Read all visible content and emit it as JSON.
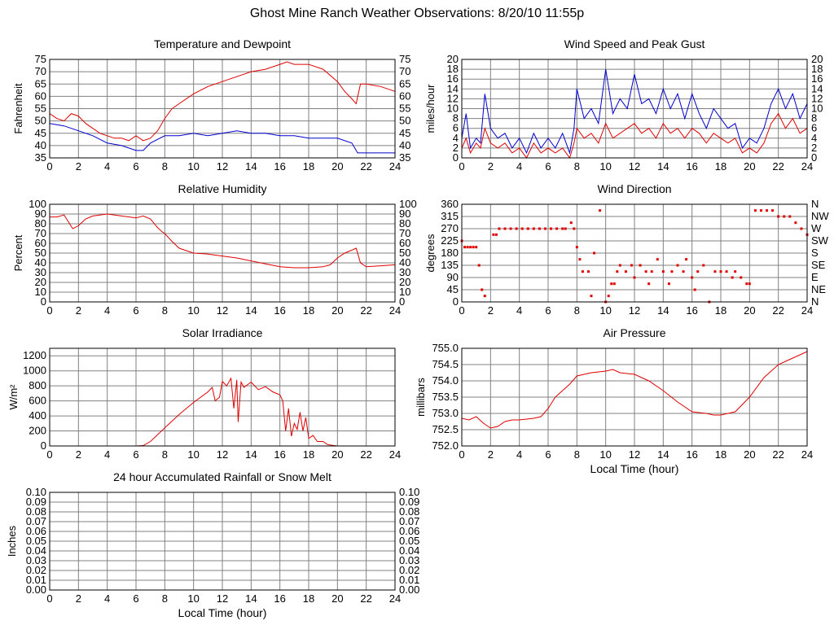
{
  "page": {
    "title": "Ghost Mine Ranch Weather Observations: 8/20/10 11:55p"
  },
  "colors": {
    "series_red": "#e00000",
    "series_blue": "#0000d0",
    "grid": "#808080",
    "frame": "#000000"
  },
  "chart_data": [
    {
      "id": "temp",
      "type": "line",
      "title": "Temperature and Dewpoint",
      "xlabel": "",
      "ylabel": "Fahrenheit",
      "xlim": [
        0,
        24
      ],
      "ylim": [
        35,
        75
      ],
      "xticks": [
        0,
        2,
        4,
        6,
        8,
        10,
        12,
        14,
        16,
        18,
        20,
        22,
        24
      ],
      "yticks": [
        35,
        40,
        45,
        50,
        55,
        60,
        65,
        70,
        75
      ],
      "ytick_labels": [
        "35",
        "40",
        "45",
        "50",
        "55",
        "60",
        "65",
        "70",
        "75"
      ],
      "ytick_labels_right": [
        "35",
        "40",
        "45",
        "50",
        "55",
        "60",
        "65",
        "70",
        "75"
      ],
      "grid": true,
      "series": [
        {
          "color": "#e00000",
          "style": "line",
          "x": [
            0,
            0.5,
            1,
            1.5,
            2,
            2.5,
            3,
            3.5,
            4,
            4.5,
            5,
            5.5,
            6,
            6.5,
            7,
            7.5,
            8,
            8.5,
            9,
            10,
            11,
            12,
            13,
            14,
            15,
            16,
            16.5,
            17,
            18,
            19,
            20,
            20.5,
            21,
            21.3,
            21.6,
            22,
            23,
            24
          ],
          "y": [
            53,
            51,
            50,
            53,
            52,
            49,
            47,
            45,
            44,
            43,
            43,
            42,
            44,
            42,
            43,
            46,
            51,
            55,
            57,
            61,
            64,
            66,
            68,
            70,
            71,
            73,
            74,
            73,
            73,
            71,
            66,
            62,
            59,
            57,
            65,
            65,
            64,
            62
          ]
        },
        {
          "color": "#0000d0",
          "style": "line",
          "x": [
            0,
            1,
            2,
            3,
            4,
            5,
            5.5,
            6,
            6.5,
            7,
            8,
            9,
            10,
            11,
            12,
            13,
            14,
            15,
            16,
            17,
            18,
            19,
            20,
            21,
            21.4,
            22,
            23,
            24
          ],
          "y": [
            49,
            48,
            46,
            44,
            41,
            40,
            39,
            38,
            38,
            41,
            44,
            44,
            45,
            44,
            45,
            46,
            45,
            45,
            44,
            44,
            43,
            43,
            43,
            41,
            37,
            37,
            37,
            37
          ]
        }
      ]
    },
    {
      "id": "wind",
      "type": "line",
      "title": "Wind Speed and Peak Gust",
      "xlabel": "",
      "ylabel": "miles/hour",
      "xlim": [
        0,
        24
      ],
      "ylim": [
        0,
        20
      ],
      "xticks": [
        0,
        2,
        4,
        6,
        8,
        10,
        12,
        14,
        16,
        18,
        20,
        22,
        24
      ],
      "yticks": [
        0,
        2,
        4,
        6,
        8,
        10,
        12,
        14,
        16,
        18,
        20
      ],
      "ytick_labels": [
        "0",
        "2",
        "4",
        "6",
        "8",
        "10",
        "12",
        "14",
        "16",
        "18",
        "20"
      ],
      "ytick_labels_right": [
        "0",
        "2",
        "4",
        "6",
        "8",
        "10",
        "12",
        "14",
        "16",
        "18",
        "20"
      ],
      "grid": true,
      "series": [
        {
          "color": "#e00000",
          "style": "line",
          "x": [
            0,
            0.3,
            0.6,
            1,
            1.3,
            1.6,
            2,
            2.5,
            3,
            3.5,
            4,
            4.5,
            5,
            5.5,
            6,
            6.5,
            7,
            7.5,
            7.8,
            8,
            8.5,
            9,
            9.5,
            10,
            10.5,
            11,
            11.5,
            12,
            12.5,
            13,
            13.5,
            14,
            14.5,
            15,
            15.5,
            16,
            16.5,
            17,
            17.5,
            18,
            18.5,
            19,
            19.5,
            20,
            20.5,
            21,
            21.5,
            22,
            22.5,
            23,
            23.5,
            24
          ],
          "y": [
            2,
            4,
            1,
            3,
            2,
            6,
            3,
            2,
            3,
            1,
            2,
            0,
            3,
            1,
            2,
            1,
            2,
            0,
            3,
            6,
            4,
            5,
            3,
            7,
            4,
            5,
            6,
            7,
            5,
            6,
            4,
            7,
            5,
            6,
            4,
            6,
            5,
            3,
            5,
            4,
            3,
            4,
            1,
            2,
            1,
            3,
            7,
            9,
            6,
            8,
            5,
            6
          ]
        },
        {
          "color": "#0000d0",
          "style": "line",
          "x": [
            0,
            0.3,
            0.6,
            1,
            1.3,
            1.6,
            2,
            2.5,
            3,
            3.5,
            4,
            4.5,
            5,
            5.5,
            6,
            6.5,
            7,
            7.5,
            7.8,
            8,
            8.5,
            9,
            9.5,
            10,
            10.5,
            11,
            11.5,
            12,
            12.5,
            13,
            13.5,
            14,
            14.5,
            15,
            15.5,
            16,
            16.5,
            17,
            17.5,
            18,
            18.5,
            19,
            19.5,
            20,
            20.5,
            21,
            21.5,
            22,
            22.5,
            23,
            23.5,
            24
          ],
          "y": [
            4,
            9,
            2,
            4,
            3,
            13,
            6,
            4,
            5,
            2,
            4,
            1,
            5,
            2,
            4,
            2,
            5,
            1,
            6,
            14,
            8,
            10,
            7,
            18,
            9,
            12,
            10,
            17,
            11,
            12,
            9,
            14,
            10,
            13,
            8,
            13,
            9,
            6,
            10,
            8,
            6,
            7,
            2,
            4,
            3,
            6,
            11,
            14,
            10,
            13,
            8,
            11
          ]
        }
      ]
    },
    {
      "id": "humidity",
      "type": "line",
      "title": "Relative Humidity",
      "xlabel": "",
      "ylabel": "Percent",
      "xlim": [
        0,
        24
      ],
      "ylim": [
        0,
        100
      ],
      "xticks": [
        0,
        2,
        4,
        6,
        8,
        10,
        12,
        14,
        16,
        18,
        20,
        22,
        24
      ],
      "yticks": [
        0,
        10,
        20,
        30,
        40,
        50,
        60,
        70,
        80,
        90,
        100
      ],
      "ytick_labels": [
        "0",
        "10",
        "20",
        "30",
        "40",
        "50",
        "60",
        "70",
        "80",
        "90",
        "100"
      ],
      "ytick_labels_right": [
        "0",
        "10",
        "20",
        "30",
        "40",
        "50",
        "60",
        "70",
        "80",
        "90",
        "100"
      ],
      "grid": true,
      "series": [
        {
          "color": "#e00000",
          "style": "line",
          "x": [
            0,
            0.5,
            1,
            1.3,
            1.6,
            2,
            2.5,
            3,
            4,
            5,
            6,
            6.5,
            7,
            7.5,
            7.8,
            8,
            8.5,
            9,
            10,
            11,
            12,
            13,
            14,
            15,
            16,
            17,
            18,
            19,
            19.5,
            20,
            20.5,
            21,
            21.3,
            21.6,
            22,
            23,
            24
          ],
          "y": [
            87,
            87,
            89,
            82,
            75,
            78,
            85,
            88,
            90,
            88,
            86,
            88,
            85,
            76,
            72,
            70,
            62,
            55,
            50,
            49,
            47,
            45,
            42,
            39,
            36,
            35,
            35,
            36,
            38,
            45,
            50,
            53,
            55,
            40,
            36,
            37,
            38
          ]
        }
      ]
    },
    {
      "id": "direction",
      "type": "scatter",
      "title": "Wind Direction",
      "xlabel": "",
      "ylabel": "degrees",
      "xlim": [
        0,
        24
      ],
      "ylim": [
        0,
        360
      ],
      "xticks": [
        0,
        2,
        4,
        6,
        8,
        10,
        12,
        14,
        16,
        18,
        20,
        22,
        24
      ],
      "yticks": [
        0,
        45,
        90,
        135,
        180,
        225,
        270,
        315,
        360
      ],
      "ytick_labels": [
        "0",
        "45",
        "90",
        "135",
        "180",
        "225",
        "270",
        "315",
        "360"
      ],
      "ytick_labels_right": [
        "N",
        "NE",
        "E",
        "SE",
        "S",
        "SW",
        "W",
        "NW",
        "N"
      ],
      "grid": true,
      "series": [
        {
          "color": "#e00000",
          "style": "dots",
          "x": [
            0,
            0.2,
            0.4,
            0.6,
            0.8,
            1,
            1.2,
            1.4,
            1.6,
            2.2,
            2.4,
            2.6,
            3,
            3.4,
            3.8,
            4.2,
            4.6,
            5,
            5.4,
            5.8,
            6.2,
            6.6,
            7,
            7.2,
            7.6,
            7.8,
            8,
            8.2,
            8.4,
            8.8,
            9,
            9.2,
            9.6,
            10,
            10.2,
            10.4,
            10.6,
            10.8,
            11,
            11.4,
            11.8,
            12,
            12.4,
            12.8,
            13,
            13.2,
            13.6,
            14,
            14.4,
            14.6,
            15,
            15.4,
            15.6,
            16,
            16.2,
            16.4,
            16.8,
            17.2,
            17.6,
            18,
            18.4,
            18.8,
            19,
            19.4,
            19.8,
            20,
            20.4,
            20.8,
            21.2,
            21.6,
            22,
            22.4,
            22.8,
            23.2,
            23.6,
            24
          ],
          "y": [
            225,
            202,
            202,
            202,
            202,
            202,
            135,
            45,
            22,
            248,
            248,
            270,
            270,
            270,
            270,
            270,
            270,
            270,
            270,
            270,
            270,
            270,
            270,
            270,
            292,
            270,
            202,
            157,
            112,
            112,
            22,
            180,
            337,
            0,
            22,
            67,
            67,
            112,
            135,
            112,
            135,
            90,
            135,
            112,
            67,
            112,
            157,
            112,
            67,
            112,
            135,
            112,
            157,
            90,
            45,
            112,
            135,
            0,
            112,
            112,
            112,
            90,
            112,
            90,
            67,
            67,
            337,
            337,
            337,
            337,
            315,
            315,
            315,
            292,
            270,
            248
          ]
        }
      ]
    },
    {
      "id": "solar",
      "type": "line",
      "title": "Solar Irradiance",
      "xlabel": "",
      "ylabel": "W/m²",
      "xlim": [
        0,
        24
      ],
      "ylim": [
        0,
        1300
      ],
      "xticks": [
        0,
        2,
        4,
        6,
        8,
        10,
        12,
        14,
        16,
        18,
        20,
        22,
        24
      ],
      "yticks": [
        0,
        200,
        400,
        600,
        800,
        1000,
        1200
      ],
      "ytick_labels": [
        "0",
        "200",
        "400",
        "600",
        "800",
        "1000",
        "1200"
      ],
      "ytick_labels_right": [],
      "grid": true,
      "series": [
        {
          "color": "#e00000",
          "style": "line",
          "x": [
            0,
            6,
            6.5,
            7,
            8,
            9,
            10,
            11,
            11.3,
            11.5,
            11.8,
            12,
            12.3,
            12.6,
            12.8,
            13,
            13.1,
            13.3,
            13.5,
            14,
            14.5,
            15,
            15.5,
            16,
            16.2,
            16.4,
            16.6,
            16.8,
            17,
            17.2,
            17.4,
            17.6,
            17.8,
            18,
            18.3,
            18.6,
            19,
            19.3,
            19.6,
            20,
            24
          ],
          "y": [
            0,
            0,
            5,
            60,
            240,
            420,
            580,
            720,
            780,
            600,
            650,
            860,
            800,
            900,
            500,
            880,
            320,
            850,
            780,
            850,
            750,
            790,
            720,
            680,
            600,
            200,
            500,
            130,
            300,
            220,
            450,
            200,
            380,
            100,
            140,
            60,
            60,
            20,
            10,
            0,
            0
          ]
        }
      ]
    },
    {
      "id": "pressure",
      "type": "line",
      "title": "Air Pressure",
      "xlabel": "Local Time (hour)",
      "ylabel": "millibars",
      "xlim": [
        0,
        24
      ],
      "ylim": [
        752.0,
        755.0
      ],
      "xticks": [
        0,
        2,
        4,
        6,
        8,
        10,
        12,
        14,
        16,
        18,
        20,
        22,
        24
      ],
      "yticks": [
        752.0,
        752.5,
        753.0,
        753.5,
        754.0,
        754.5,
        755.0
      ],
      "ytick_labels": [
        "752.0",
        "752.5",
        "753.0",
        "753.5",
        "754.0",
        "754.5",
        "755.0"
      ],
      "ytick_labels_right": [],
      "grid": true,
      "series": [
        {
          "color": "#e00000",
          "style": "line",
          "x": [
            0,
            0.5,
            1,
            1.5,
            2,
            2.5,
            3,
            3.5,
            4,
            5,
            5.5,
            6,
            6.5,
            7,
            7.5,
            8,
            9,
            10,
            10.5,
            11,
            12,
            13,
            14,
            15,
            16,
            17,
            17.5,
            18,
            19,
            20,
            21,
            22,
            22.5,
            23,
            23.5,
            24
          ],
          "y": [
            752.85,
            752.8,
            752.9,
            752.7,
            752.55,
            752.6,
            752.75,
            752.8,
            752.8,
            752.85,
            752.9,
            753.15,
            753.5,
            753.7,
            753.9,
            754.15,
            754.25,
            754.3,
            754.35,
            754.25,
            754.2,
            754.0,
            753.7,
            753.35,
            753.05,
            753.0,
            752.95,
            752.95,
            753.05,
            753.5,
            754.1,
            754.5,
            754.6,
            754.7,
            754.8,
            754.9
          ]
        }
      ]
    },
    {
      "id": "rain",
      "type": "line",
      "title": "24 hour Accumulated Rainfall or Snow Melt",
      "xlabel": "Local Time (hour)",
      "ylabel": "Inches",
      "xlim": [
        0,
        24
      ],
      "ylim": [
        0,
        0.1
      ],
      "xticks": [
        0,
        2,
        4,
        6,
        8,
        10,
        12,
        14,
        16,
        18,
        20,
        22,
        24
      ],
      "yticks": [
        0,
        0.01,
        0.02,
        0.03,
        0.04,
        0.05,
        0.06,
        0.07,
        0.08,
        0.09,
        0.1
      ],
      "ytick_labels": [
        "0.00",
        "0.01",
        "0.02",
        "0.03",
        "0.04",
        "0.05",
        "0.06",
        "0.07",
        "0.08",
        "0.09",
        "0.10"
      ],
      "ytick_labels_right": [
        "0.00",
        "0.01",
        "0.02",
        "0.03",
        "0.04",
        "0.05",
        "0.06",
        "0.07",
        "0.08",
        "0.09",
        "0.10"
      ],
      "grid": true,
      "series": [
        {
          "color": "#e00000",
          "style": "line",
          "x": [
            0,
            24
          ],
          "y": [
            0,
            0
          ]
        }
      ]
    }
  ]
}
